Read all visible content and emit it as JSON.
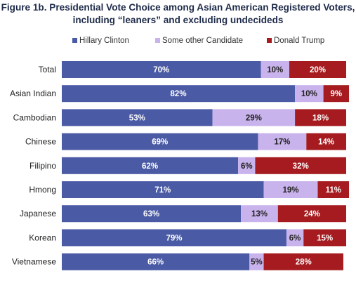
{
  "chart_data": {
    "type": "bar",
    "orientation": "horizontal",
    "stacked": true,
    "percent_stacked": true,
    "title_lines": [
      "Figure 1b. Presidential Vote Choice among Asian American Registered Voters,",
      "including “leaners” and excluding undecideds"
    ],
    "categories": [
      "Total",
      "Asian Indian",
      "Cambodian",
      "Chinese",
      "Filipino",
      "Hmong",
      "Japanese",
      "Korean",
      "Vietnamese"
    ],
    "series": [
      {
        "name": "Hillary Clinton",
        "color": "#4a5aa5",
        "label_color": "#ffffff",
        "values": [
          70,
          82,
          53,
          69,
          62,
          71,
          63,
          79,
          66
        ],
        "labels": [
          "70%",
          "82%",
          "53%",
          "69%",
          "62%",
          "71%",
          "63%",
          "79%",
          "66%"
        ]
      },
      {
        "name": "Some other Candidate",
        "color": "#c9b3ec",
        "label_color": "#222222",
        "values": [
          10,
          10,
          29,
          17,
          6,
          19,
          13,
          6,
          5
        ],
        "labels": [
          "10%",
          "10%",
          "29%",
          "17%",
          "6%",
          "19%",
          "13%",
          "6%",
          "5%"
        ]
      },
      {
        "name": "Donald Trump",
        "color": "#a51b1f",
        "label_color": "#ffffff",
        "values": [
          20,
          9,
          18,
          14,
          32,
          11,
          24,
          15,
          28
        ],
        "labels": [
          "20%",
          "9%",
          "18%",
          "14%",
          "32%",
          "11%",
          "24%",
          "15%",
          "28%"
        ]
      }
    ],
    "legend_position": "top",
    "xlim": [
      0,
      100
    ],
    "grid": false
  }
}
